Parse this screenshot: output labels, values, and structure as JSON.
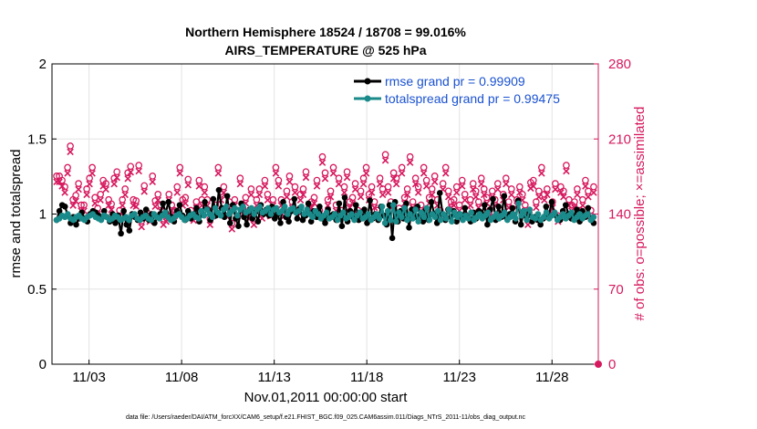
{
  "chart_data": {
    "type": "line",
    "title_line1": "Northern Hemisphere 18524 / 18708 = 99.016%",
    "title_line2": "AIRS_TEMPERATURE @ 525 hPa",
    "xlabel": "Nov.01,2011 00:00:00 start",
    "ylabel_left": "rmse and totalspread",
    "ylabel_right": "# of obs: o=possible; ×=assimilated",
    "footer": "data file: /Users/raeder/DAI/ATM_forcXX/CAM6_setup/f.e21.FHIST_BGC.f09_025.CAM6assim.011/Diags_NTrS_2011-11/obs_diag_output.nc",
    "xlim": [
      1,
      30.5
    ],
    "xticks": [
      3,
      8,
      13,
      18,
      23,
      28
    ],
    "xtick_labels": [
      "11/03",
      "11/08",
      "11/13",
      "11/18",
      "11/23",
      "11/28"
    ],
    "ylim_left": [
      0,
      2
    ],
    "yticks_left": [
      0,
      0.5,
      1,
      1.5,
      2
    ],
    "ytick_labels_left": [
      "0",
      "0.5",
      "1",
      "1.5",
      "2"
    ],
    "ylim_right": [
      0,
      280
    ],
    "yticks_right": [
      0,
      70,
      140,
      210,
      280
    ],
    "ytick_labels_right": [
      "0",
      "70",
      "140",
      "210",
      "280"
    ],
    "grid": true,
    "legend_position": "top-right",
    "colors": {
      "rmse": "#000000",
      "spread": "#1a8a8a",
      "obs": "#d6195e",
      "right_axis": "#d6195e",
      "legend_text": "#1a52d1"
    },
    "series": [
      {
        "name": "rmse grand pr = 0.99909",
        "axis": "left",
        "values": [
          0.96,
          1.02,
          1.06,
          1.05,
          0.99,
          0.94,
          0.98,
          0.93,
          0.97,
          1.01,
          0.97,
          0.95,
          1.0,
          1.02,
          1.01,
          0.99,
          0.97,
          1.02,
          0.98,
          0.95,
          1.0,
          0.94,
          0.99,
          0.87,
          1.02,
          0.93,
          0.89,
          1.0,
          0.98,
          0.96,
          1.01,
          0.97,
          1.03,
          0.96,
          1.0,
          0.94,
          0.98,
          1.0,
          1.07,
          1.01,
          1.08,
          0.98,
          0.95,
          1.02,
          1.06,
          0.99,
          0.96,
          1.02,
          0.97,
          1.0,
          1.04,
          0.95,
          1.0,
          1.08,
          1.03,
          0.96,
          1.1,
          0.99,
          1.16,
          1.04,
          0.98,
          1.12,
          0.94,
          1.06,
          0.97,
          0.92,
          1.07,
          0.98,
          0.93,
          1.03,
          0.97,
          1.01,
          0.95,
          1.06,
          1.0,
          1.03,
          0.99,
          1.05,
          0.97,
          1.0,
          0.94,
          1.08,
          0.98,
          0.95,
          1.02,
          1.1,
          0.97,
          1.04,
          0.96,
          0.99,
          1.07,
          0.95,
          1.02,
          0.98,
          1.05,
          0.97,
          0.94,
          1.03,
          0.99,
          1.0,
          0.96,
          1.07,
          0.92,
          1.11,
          0.95,
          1.02,
          0.98,
          1.06,
          0.96,
          0.99,
          1.03,
          0.94,
          1.09,
          0.97,
          1.0,
          0.96,
          1.05,
          0.99,
          0.93,
          1.06,
          0.84,
          1.08,
          0.95,
          1.02,
          0.97,
          1.07,
          0.91,
          1.03,
          0.98,
          1.05,
          0.99,
          0.95,
          1.03,
          0.96,
          1.08,
          1.0,
          0.94,
          1.14,
          1.0,
          0.96,
          1.03,
          0.98,
          1.02,
          0.95,
          1.0,
          0.97,
          1.04,
          0.98,
          0.95,
          1.01,
          0.97,
          1.02,
          1.0,
          1.06,
          0.93,
          1.03,
          1.1,
          0.96,
          1.05,
          0.98,
          1.12,
          0.97,
          1.0,
          1.04,
          0.95,
          1.09,
          0.93,
          1.02,
          0.98,
          1.01,
          0.95,
          0.98,
          0.96,
          0.93,
          0.97,
          1.05,
          0.99,
          1.08,
          1.0,
          0.98,
          0.96,
          1.02,
          1.06,
          1.0,
          0.97,
          0.99,
          1.03,
          0.95,
          1.02,
          0.98,
          1.04,
          0.96,
          0.94
        ]
      },
      {
        "name": "totalspread grand pr = 0.99475",
        "axis": "left",
        "values": [
          0.96,
          0.97,
          0.99,
          0.98,
          1.0,
          0.97,
          0.96,
          0.98,
          0.99,
          0.97,
          0.96,
          0.98,
          0.99,
          1.0,
          0.98,
          0.97,
          0.96,
          0.99,
          0.98,
          0.96,
          0.97,
          0.99,
          0.98,
          0.96,
          0.97,
          0.98,
          0.96,
          0.99,
          1.0,
          0.97,
          0.96,
          0.98,
          0.99,
          0.97,
          0.96,
          1.0,
          0.98,
          0.97,
          0.99,
          1.01,
          0.98,
          0.96,
          0.97,
          0.99,
          1.0,
          0.98,
          0.96,
          0.97,
          0.99,
          1.0,
          0.98,
          0.97,
          1.02,
          0.99,
          1.03,
          1.0,
          0.98,
          1.04,
          1.01,
          0.99,
          1.03,
          1.05,
          1.0,
          1.02,
          1.04,
          0.99,
          1.03,
          1.05,
          1.01,
          1.02,
          1.04,
          1.0,
          1.03,
          1.05,
          1.01,
          1.02,
          1.04,
          1.0,
          1.03,
          1.04,
          1.01,
          1.02,
          1.05,
          1.0,
          1.03,
          1.04,
          1.01,
          1.02,
          1.05,
          1.0,
          1.03,
          1.0,
          0.98,
          1.02,
          1.0,
          0.97,
          0.99,
          1.01,
          0.97,
          0.98,
          1.0,
          0.96,
          0.99,
          1.01,
          0.97,
          0.98,
          1.0,
          0.96,
          0.99,
          1.01,
          0.97,
          0.98,
          1.0,
          0.96,
          0.98,
          1.0,
          0.97,
          1.05,
          0.94,
          1.02,
          0.96,
          1.06,
          0.95,
          1.01,
          0.98,
          1.04,
          0.96,
          1.0,
          0.97,
          1.03,
          0.95,
          1.01,
          0.98,
          1.04,
          0.96,
          1.0,
          0.98,
          1.02,
          0.96,
          1.0,
          0.97,
          1.03,
          0.95,
          1.01,
          0.98,
          1.0,
          0.96,
          0.99,
          0.97,
          1.01,
          0.96,
          0.98,
          1.0,
          0.97,
          0.99,
          1.01,
          0.96,
          0.98,
          1.0,
          0.97,
          0.99,
          1.01,
          0.96,
          0.98,
          1.0,
          0.97,
          1.07,
          0.99,
          1.02,
          0.96,
          1.03,
          0.98,
          0.97,
          1.0,
          0.96,
          0.98,
          1.01,
          0.97,
          0.99,
          1.01,
          0.96,
          0.98,
          1.0,
          0.97,
          0.99,
          1.01,
          0.96,
          0.98,
          1.0,
          0.97,
          0.99,
          1.0,
          0.96,
          0.98
        ]
      }
    ],
    "obs_possible": {
      "axis": "right",
      "values": [
        172,
        172,
        168,
        162,
        180,
        200,
        150,
        154,
        165,
        145,
        145,
        160,
        170,
        180,
        152,
        142,
        155,
        168,
        165,
        150,
        146,
        170,
        176,
        140,
        150,
        160,
        175,
        181,
        150,
        149,
        182,
        130,
        163,
        138,
        135,
        172,
        149,
        155,
        145,
        132,
        135,
        155,
        145,
        140,
        162,
        180,
        150,
        152,
        169,
        140,
        136,
        148,
        168,
        150,
        162,
        150,
        132,
        140,
        145,
        180,
        155,
        162,
        140,
        148,
        128,
        150,
        140,
        170,
        142,
        152,
        138,
        160,
        132,
        150,
        160,
        138,
        168,
        155,
        140,
        150,
        180,
        168,
        150,
        140,
        158,
        172,
        148,
        162,
        140,
        155,
        160,
        176,
        142,
        148,
        152,
        168,
        140,
        190,
        175,
        150,
        158,
        180,
        145,
        170,
        140,
        162,
        176,
        148,
        152,
        165,
        140,
        158,
        170,
        180,
        155,
        162,
        148,
        140,
        170,
        160,
        192,
        162,
        148,
        175,
        170,
        142,
        180,
        152,
        160,
        190,
        148,
        170,
        162,
        145,
        180,
        168,
        152,
        160,
        172,
        150,
        140,
        165,
        180,
        158,
        148,
        150,
        162,
        145,
        168,
        155,
        140,
        150,
        165,
        158,
        148,
        170,
        160,
        152,
        140,
        158,
        150,
        165,
        140,
        155,
        170,
        148,
        160,
        140,
        150,
        162,
        155,
        145,
        132,
        166,
        168,
        148,
        158,
        180,
        155,
        160,
        142,
        148,
        165,
        135,
        162,
        158,
        182,
        150,
        145,
        148,
        160,
        140,
        150,
        168,
        158,
        140,
        162
      ]
    },
    "obs_assimilated": {
      "axis": "right",
      "values": [
        170,
        170,
        166,
        160,
        178,
        198,
        148,
        152,
        163,
        143,
        143,
        158,
        168,
        178,
        150,
        140,
        153,
        166,
        163,
        148,
        144,
        168,
        174,
        138,
        148,
        158,
        173,
        179,
        148,
        147,
        180,
        128,
        161,
        136,
        133,
        170,
        147,
        153,
        143,
        130,
        133,
        153,
        143,
        138,
        160,
        178,
        148,
        150,
        167,
        138,
        134,
        146,
        166,
        148,
        160,
        148,
        130,
        138,
        143,
        178,
        153,
        160,
        138,
        146,
        126,
        148,
        138,
        168,
        140,
        150,
        136,
        158,
        130,
        148,
        158,
        136,
        166,
        153,
        138,
        148,
        178,
        166,
        148,
        138,
        156,
        170,
        146,
        160,
        138,
        153,
        158,
        174,
        140,
        146,
        150,
        166,
        138,
        188,
        173,
        148,
        156,
        178,
        143,
        168,
        138,
        160,
        174,
        146,
        150,
        163,
        138,
        156,
        168,
        178,
        153,
        160,
        146,
        138,
        168,
        158,
        190,
        160,
        146,
        173,
        168,
        140,
        178,
        150,
        158,
        188,
        146,
        168,
        160,
        143,
        178,
        166,
        150,
        158,
        170,
        148,
        138,
        163,
        178,
        156,
        146,
        148,
        160,
        143,
        166,
        153,
        138,
        148,
        163,
        156,
        146,
        168,
        158,
        150,
        138,
        156,
        148,
        163,
        138,
        153,
        168,
        146,
        158,
        138,
        148,
        160,
        153,
        143,
        130,
        164,
        166,
        146,
        156,
        178,
        153,
        158,
        140,
        146,
        163,
        133,
        160,
        156,
        180,
        148,
        143,
        146,
        158,
        138,
        148,
        166,
        156,
        138,
        160
      ]
    }
  }
}
